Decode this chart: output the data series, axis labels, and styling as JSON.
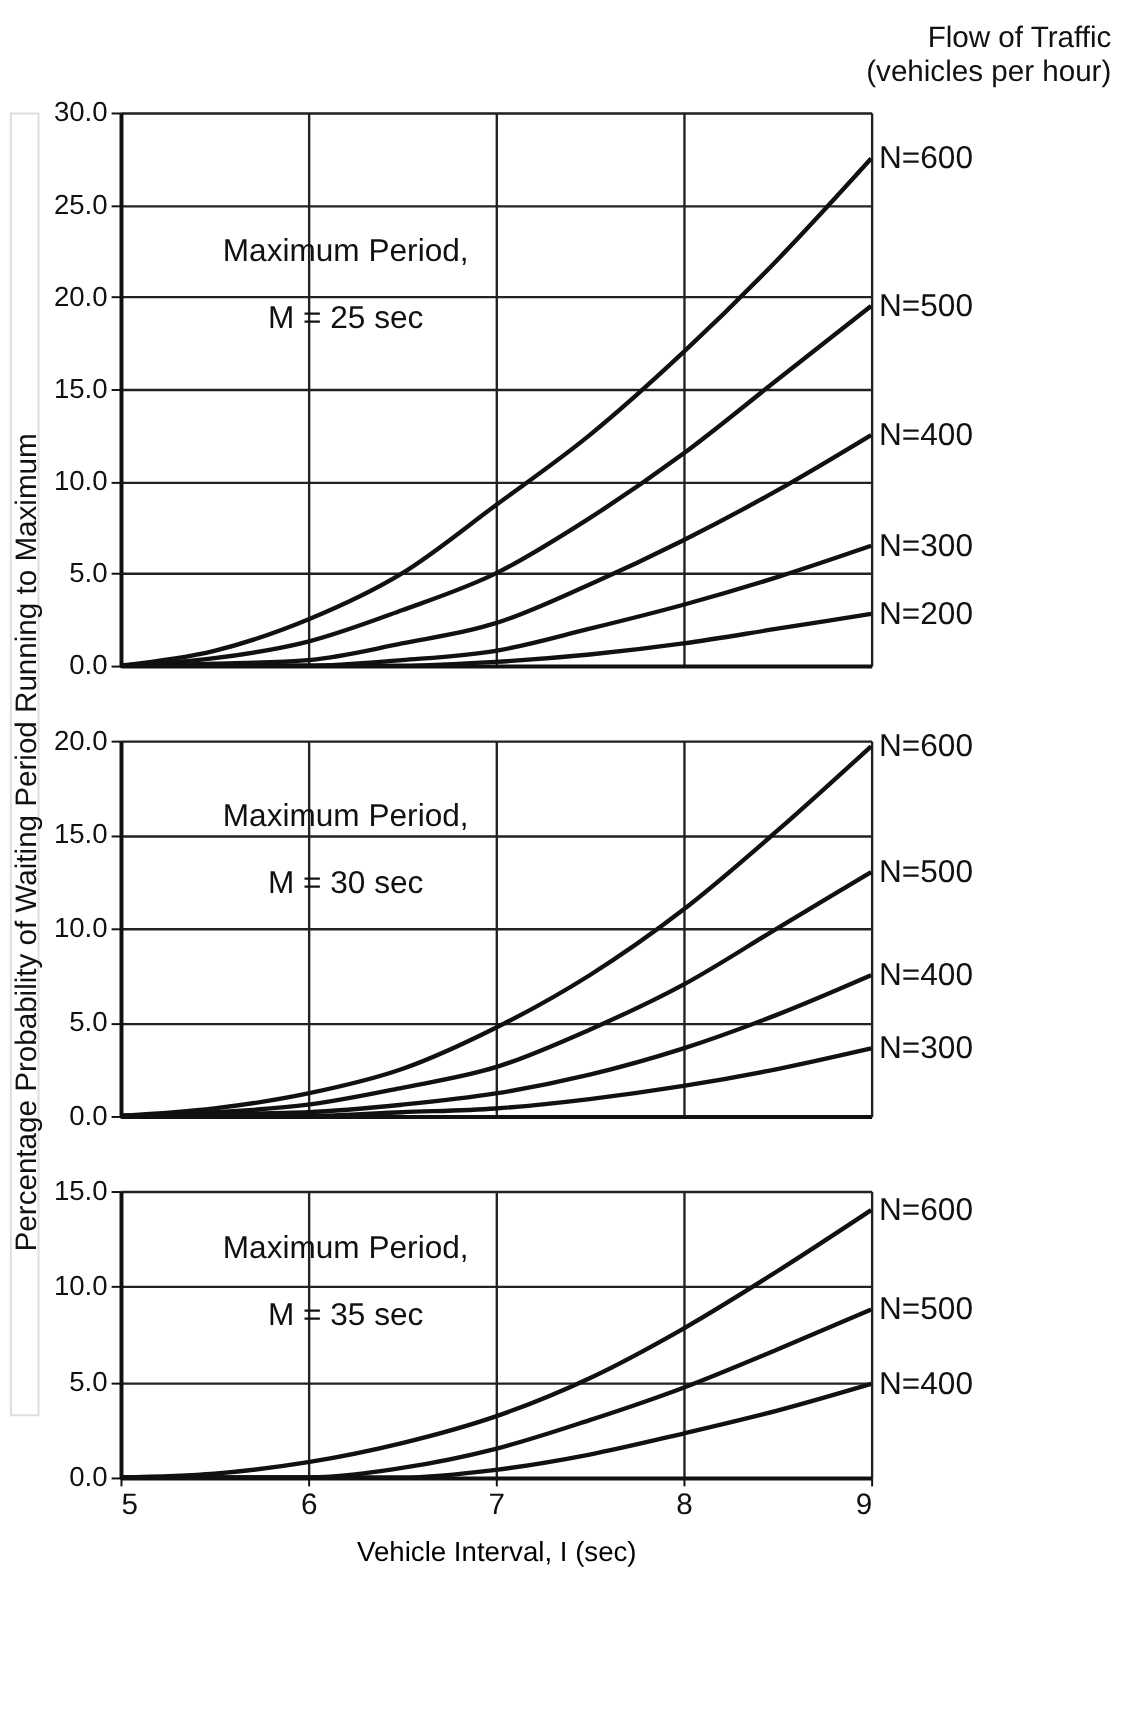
{
  "chart_data": [
    {
      "type": "line",
      "legend_title": "Flow of Traffic\n(vehicles per hour)",
      "ylabel": "Percentage Probability of Waiting Period Running to Maximum",
      "annotations": [
        "Maximum Period,",
        "M = 25 sec"
      ],
      "x": [
        5,
        5.5,
        6,
        6.5,
        7,
        7.5,
        8,
        8.5,
        9
      ],
      "series": [
        {
          "name": "N=600",
          "color": "#111111",
          "values": [
            0,
            0.8,
            2.5,
            5,
            8.7,
            12.5,
            17,
            22,
            27.5
          ]
        },
        {
          "name": "N=500",
          "color": "#111111",
          "values": [
            0,
            0.4,
            1.3,
            3,
            5,
            8,
            11.5,
            15.5,
            19.5
          ]
        },
        {
          "name": "N=400",
          "color": "#111111",
          "values": [
            0,
            0.1,
            0.3,
            1.2,
            2.3,
            4.4,
            6.8,
            9.5,
            12.5
          ]
        },
        {
          "name": "N=300",
          "color": "#111111",
          "values": [
            0,
            0,
            0,
            0.3,
            0.8,
            2,
            3.3,
            4.8,
            6.5
          ]
        },
        {
          "name": "N=200",
          "color": "#111111",
          "values": [
            0,
            0,
            0,
            0,
            0.2,
            0.6,
            1.2,
            2,
            2.8
          ]
        }
      ],
      "xlim": [
        5,
        9
      ],
      "xticks": [
        5,
        6,
        7,
        8,
        9
      ],
      "ylim": [
        0,
        30
      ],
      "yticks": [
        {
          "value": 0,
          "label": "0.0"
        },
        {
          "value": 5,
          "label": "5.0"
        },
        {
          "value": 10,
          "label": "10.0"
        },
        {
          "value": 15,
          "label": "15.0"
        },
        {
          "value": 20,
          "label": "20.0"
        },
        {
          "value": 25,
          "label": "25.0"
        },
        {
          "value": 30,
          "label": "30.0"
        }
      ],
      "grid": true,
      "legend": false,
      "tick_labels": "y"
    },
    {
      "type": "line",
      "annotations": [
        "Maximum Period,",
        "M = 30 sec"
      ],
      "x": [
        5,
        5.5,
        6,
        6.5,
        7,
        7.5,
        8,
        8.5,
        9
      ],
      "series": [
        {
          "name": "N=600",
          "color": "#111111",
          "values": [
            0,
            0.4,
            1.2,
            2.5,
            4.7,
            7.5,
            11,
            15.2,
            19.7
          ]
        },
        {
          "name": "N=500",
          "color": "#111111",
          "values": [
            0,
            0.2,
            0.6,
            1.5,
            2.6,
            4.6,
            7,
            10,
            13
          ]
        },
        {
          "name": "N=400",
          "color": "#111111",
          "values": [
            0,
            0.1,
            0.2,
            0.6,
            1.2,
            2.2,
            3.6,
            5.4,
            7.5
          ]
        },
        {
          "name": "N=300",
          "color": "#111111",
          "values": [
            0,
            0,
            0,
            0.2,
            0.4,
            0.9,
            1.6,
            2.5,
            3.6
          ]
        }
      ],
      "xlim": [
        5,
        9
      ],
      "xticks": [
        5,
        6,
        7,
        8,
        9
      ],
      "ylim": [
        0,
        20
      ],
      "yticks": [
        {
          "value": 0,
          "label": "0.0"
        },
        {
          "value": 5,
          "label": "5.0"
        },
        {
          "value": 10,
          "label": "10.0"
        },
        {
          "value": 15,
          "label": "15.0"
        },
        {
          "value": 20,
          "label": "20.0"
        }
      ],
      "grid": true,
      "legend": false,
      "tick_labels": "y"
    },
    {
      "type": "line",
      "annotations": [
        "Maximum Period,",
        "M = 35 sec"
      ],
      "xlabel": "Vehicle Interval, I (sec)",
      "x": [
        5,
        5.5,
        6,
        6.5,
        7,
        7.5,
        8,
        8.5,
        9
      ],
      "series": [
        {
          "name": "N=600",
          "color": "#111111",
          "values": [
            0,
            0.2,
            0.8,
            1.8,
            3.2,
            5.2,
            7.8,
            10.8,
            14
          ]
        },
        {
          "name": "N=500",
          "color": "#111111",
          "values": [
            0,
            0,
            0,
            0.5,
            1.5,
            3,
            4.7,
            6.7,
            8.8
          ]
        },
        {
          "name": "N=400",
          "color": "#111111",
          "values": [
            0,
            0,
            0,
            0,
            0.4,
            1.2,
            2.3,
            3.5,
            4.9
          ]
        }
      ],
      "xlim": [
        5,
        9
      ],
      "xticks": [
        5,
        6,
        7,
        8,
        9
      ],
      "ylim": [
        0,
        15
      ],
      "yticks": [
        {
          "value": 0,
          "label": "0.0"
        },
        {
          "value": 5,
          "label": "5.0"
        },
        {
          "value": 10,
          "label": "10.0"
        },
        {
          "value": 15,
          "label": "15.0"
        }
      ],
      "grid": true,
      "legend": false
    }
  ]
}
